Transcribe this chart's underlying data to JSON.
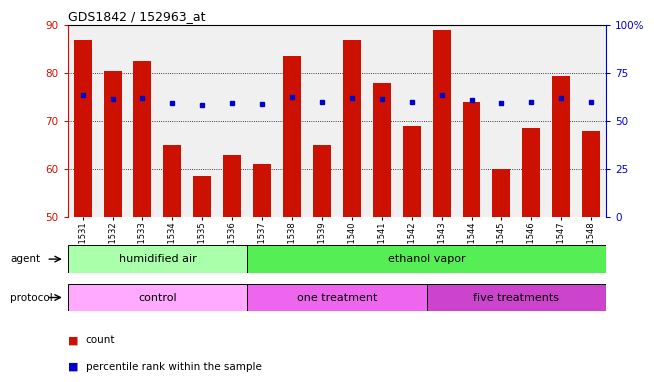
{
  "title": "GDS1842 / 152963_at",
  "samples": [
    "GSM101531",
    "GSM101532",
    "GSM101533",
    "GSM101534",
    "GSM101535",
    "GSM101536",
    "GSM101537",
    "GSM101538",
    "GSM101539",
    "GSM101540",
    "GSM101541",
    "GSM101542",
    "GSM101543",
    "GSM101544",
    "GSM101545",
    "GSM101546",
    "GSM101547",
    "GSM101548"
  ],
  "counts": [
    87,
    80.5,
    82.5,
    65,
    58.5,
    63,
    61,
    83.5,
    65,
    87,
    78,
    69,
    89,
    74,
    60,
    68.5,
    79.5,
    68
  ],
  "percentiles": [
    63.5,
    61.5,
    62,
    59.5,
    58.5,
    59.5,
    59,
    62.5,
    60,
    62,
    61.5,
    60,
    63.5,
    61,
    59.5,
    60,
    62,
    60
  ],
  "bar_bottom": 50,
  "ylim_left": [
    50,
    90
  ],
  "ylim_right": [
    0,
    100
  ],
  "yticks_left": [
    50,
    60,
    70,
    80,
    90
  ],
  "yticks_right": [
    0,
    25,
    50,
    75,
    100
  ],
  "bar_color": "#cc1100",
  "percentile_color": "#0000cc",
  "agent_groups": [
    {
      "label": "humidified air",
      "start": 0,
      "end": 6,
      "color": "#aaffaa"
    },
    {
      "label": "ethanol vapor",
      "start": 6,
      "end": 18,
      "color": "#55ee55"
    }
  ],
  "protocol_groups": [
    {
      "label": "control",
      "start": 0,
      "end": 6,
      "color": "#ffaaff"
    },
    {
      "label": "one treatment",
      "start": 6,
      "end": 12,
      "color": "#ee66ee"
    },
    {
      "label": "five treatments",
      "start": 12,
      "end": 18,
      "color": "#cc44cc"
    }
  ],
  "legend_count_label": "count",
  "legend_percentile_label": "percentile rank within the sample",
  "agent_label": "agent",
  "protocol_label": "protocol",
  "left_axis_color": "#cc1100",
  "right_axis_color": "#0000cc",
  "plot_bg": "#f0f0f0",
  "fig_bg": "#ffffff"
}
